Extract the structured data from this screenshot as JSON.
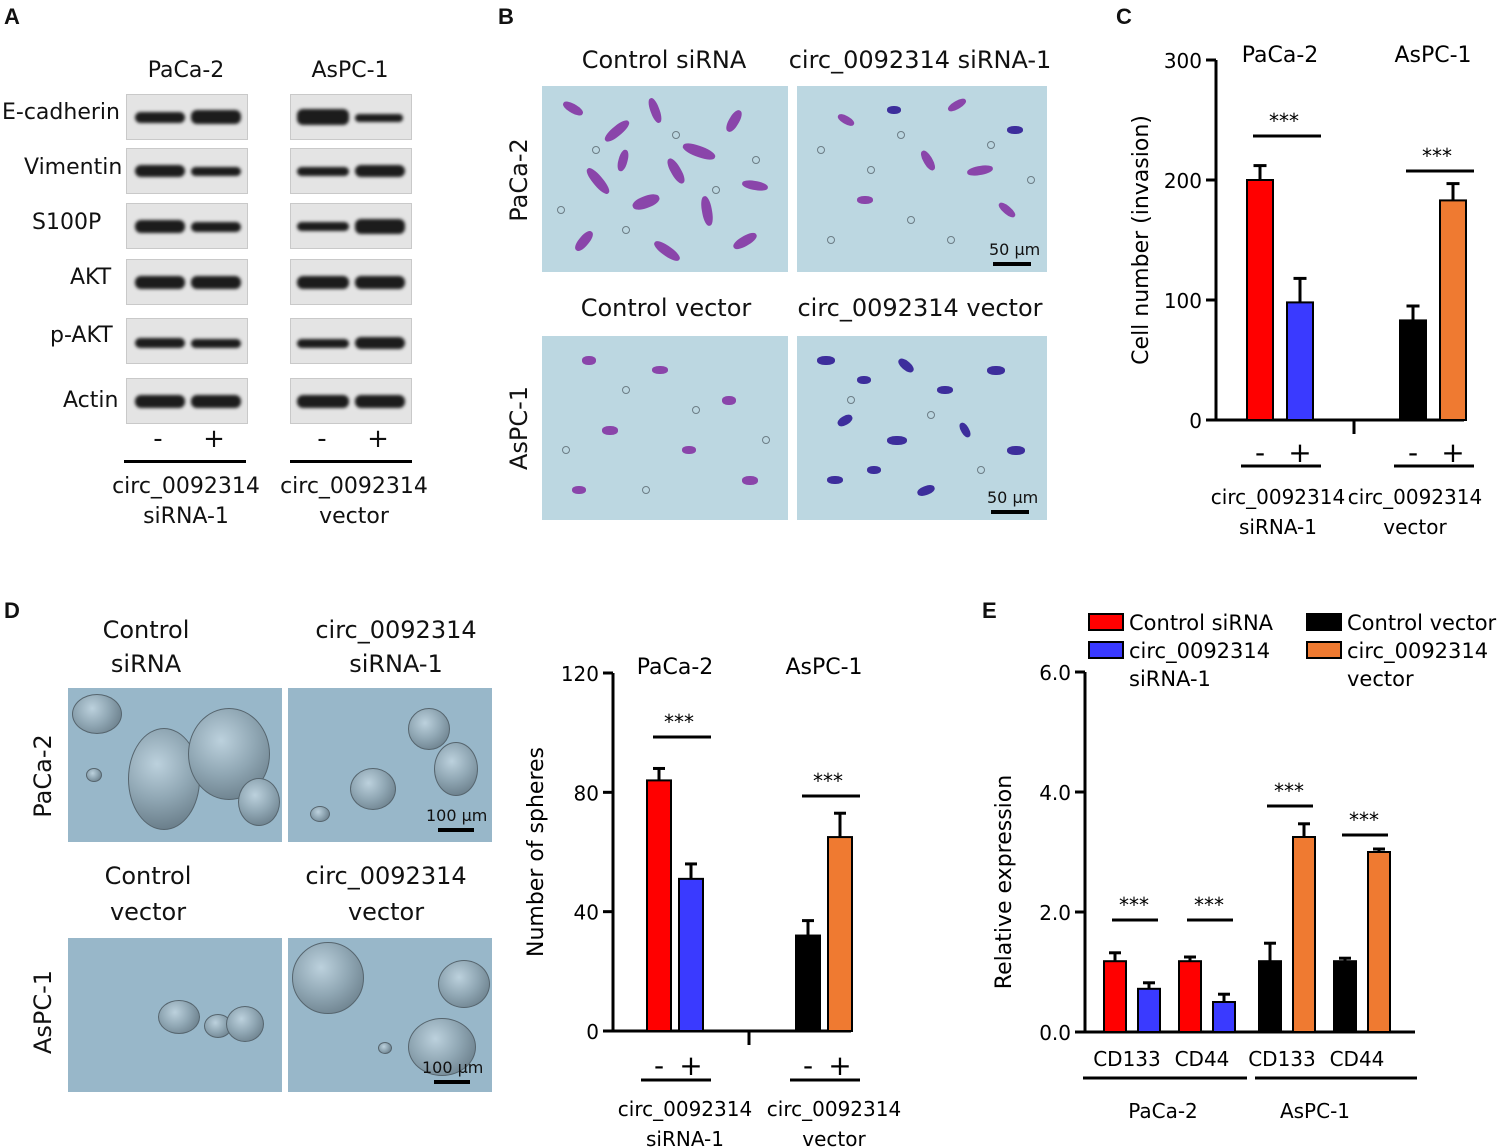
{
  "panels": {
    "A": "A",
    "B": "B",
    "C": "C",
    "D": "D",
    "E": "E"
  },
  "panelA": {
    "cell_lines": [
      "PaCa-2",
      "AsPC-1"
    ],
    "proteins": [
      "E-cadherin",
      "Vimentin",
      "S100P",
      "AKT",
      "p-AKT",
      "Actin"
    ],
    "signs": [
      "-",
      "+",
      "-",
      "+"
    ],
    "groups": [
      [
        "circ_0092314",
        "siRNA-1"
      ],
      [
        "circ_0092314",
        "vector"
      ]
    ]
  },
  "panelB": {
    "col_titles_top": [
      "Control siRNA",
      "circ_0092314 siRNA-1"
    ],
    "col_titles_bottom": [
      "Control vector",
      "circ_0092314 vector"
    ],
    "row_labels": [
      "PaCa-2",
      "AsPC-1"
    ],
    "scale": "50 μm"
  },
  "panelD": {
    "col_titles_top": [
      [
        "Control",
        "siRNA"
      ],
      [
        "circ_0092314",
        "siRNA-1"
      ]
    ],
    "col_titles_bottom": [
      [
        "Control",
        "vector"
      ],
      [
        "circ_0092314",
        "vector"
      ]
    ],
    "row_labels": [
      "PaCa-2",
      "AsPC-1"
    ],
    "scale": "100 μm"
  },
  "colors": {
    "red": "#ff0000",
    "blue": "#3a3aff",
    "black": "#000000",
    "orange": "#ef7a31"
  },
  "chart_data": [
    {
      "id": "C",
      "type": "bar",
      "ylabel": "Cell number (invasion)",
      "ylim": [
        0,
        300
      ],
      "yticks": [
        "0",
        "100",
        "200",
        "300"
      ],
      "group_labels": [
        "PaCa-2",
        "AsPC-1"
      ],
      "categories": [
        "-",
        "+",
        "-",
        "+"
      ],
      "values": [
        200,
        98,
        83,
        183
      ],
      "errors": [
        12,
        20,
        12,
        14
      ],
      "bar_colors": [
        "#ff0000",
        "#3a3aff",
        "#000000",
        "#ef7a31"
      ],
      "significance": [
        "***",
        "***"
      ],
      "group_captions": [
        [
          "circ_0092314",
          "siRNA-1"
        ],
        [
          "circ_0092314",
          "vector"
        ]
      ]
    },
    {
      "id": "D",
      "type": "bar",
      "ylabel": "Number of spheres",
      "ylim": [
        0,
        120
      ],
      "yticks": [
        "0",
        "40",
        "80",
        "120"
      ],
      "group_labels": [
        "PaCa-2",
        "AsPC-1"
      ],
      "categories": [
        "-",
        "+",
        "-",
        "+"
      ],
      "values": [
        84,
        51,
        32,
        65
      ],
      "errors": [
        4,
        5,
        5,
        8
      ],
      "bar_colors": [
        "#ff0000",
        "#3a3aff",
        "#000000",
        "#ef7a31"
      ],
      "significance": [
        "***",
        "***"
      ],
      "group_captions": [
        [
          "circ_0092314",
          "siRNA-1"
        ],
        [
          "circ_0092314",
          "vector"
        ]
      ]
    },
    {
      "id": "E",
      "type": "bar",
      "ylabel": "Relative expression",
      "ylim": [
        0,
        6
      ],
      "yticks": [
        "0.0",
        "2.0",
        "4.0",
        "6.0"
      ],
      "categories": [
        "CD133",
        "CD44",
        "CD133",
        "CD44"
      ],
      "groups": [
        "PaCa-2",
        "AsPC-1"
      ],
      "series": [
        {
          "name": "Control siRNA",
          "values": [
            1.18,
            1.18,
            null,
            null
          ],
          "errors": [
            0.14,
            0.07,
            null,
            null
          ]
        },
        {
          "name": "circ_0092314 siRNA-1",
          "values": [
            0.72,
            0.5,
            null,
            null
          ],
          "errors": [
            0.1,
            0.13,
            null,
            null
          ]
        },
        {
          "name": "Control vector",
          "values": [
            null,
            null,
            1.18,
            1.18
          ],
          "errors": [
            null,
            null,
            0.3,
            0.05
          ]
        },
        {
          "name": "circ_0092314 vector",
          "values": [
            null,
            null,
            3.25,
            3.0
          ],
          "errors": [
            null,
            null,
            0.22,
            0.05
          ]
        }
      ],
      "series_colors": [
        "#ff0000",
        "#3a3aff",
        "#000000",
        "#ef7a31"
      ],
      "significance": [
        "***",
        "***",
        "***",
        "***"
      ]
    }
  ]
}
